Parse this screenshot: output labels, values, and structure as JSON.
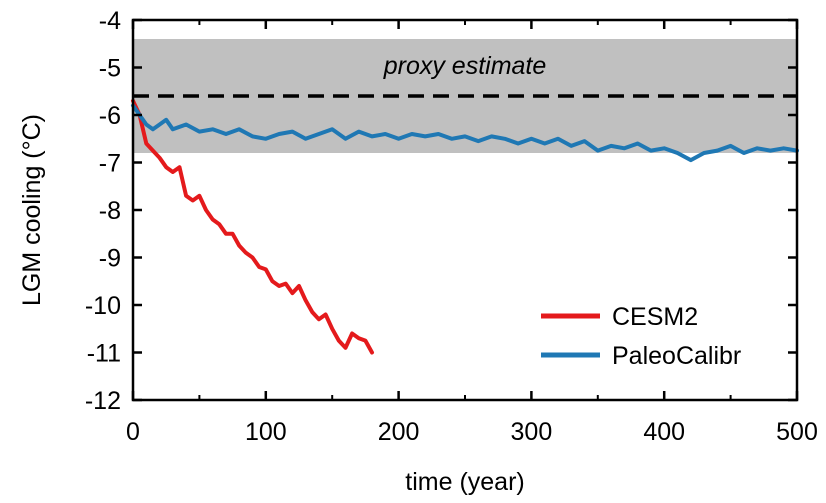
{
  "chart_data": {
    "type": "line",
    "xlabel": "time (year)",
    "ylabel": "LGM cooling (°C)",
    "xlim": [
      0,
      500
    ],
    "ylim": [
      -12,
      -4
    ],
    "x_ticks": [
      0,
      100,
      200,
      300,
      400,
      500
    ],
    "y_ticks": [
      -12,
      -11,
      -10,
      -9,
      -8,
      -7,
      -6,
      -5,
      -4
    ],
    "grid": false,
    "legend_position": "bottom-right",
    "proxy_band": {
      "label": "proxy estimate",
      "ymin": -6.8,
      "ymax": -4.4,
      "central": -5.6,
      "color": "#c0c0c0"
    },
    "series": [
      {
        "name": "CESM2",
        "color": "#e41a1c",
        "x": [
          0,
          5,
          10,
          15,
          20,
          25,
          30,
          35,
          40,
          45,
          50,
          55,
          60,
          65,
          70,
          75,
          80,
          85,
          90,
          95,
          100,
          105,
          110,
          115,
          120,
          125,
          130,
          135,
          140,
          145,
          150,
          155,
          160,
          165,
          170,
          175,
          180
        ],
        "y": [
          -5.7,
          -6.0,
          -6.6,
          -6.75,
          -6.9,
          -7.1,
          -7.2,
          -7.1,
          -7.7,
          -7.8,
          -7.7,
          -8.0,
          -8.2,
          -8.3,
          -8.5,
          -8.5,
          -8.75,
          -8.9,
          -9.0,
          -9.2,
          -9.25,
          -9.5,
          -9.6,
          -9.55,
          -9.75,
          -9.6,
          -9.9,
          -10.15,
          -10.3,
          -10.2,
          -10.5,
          -10.75,
          -10.9,
          -10.6,
          -10.7,
          -10.75,
          -11.0
        ]
      },
      {
        "name": "PaleoCalibr",
        "color": "#1f78b4",
        "x": [
          0,
          5,
          10,
          15,
          20,
          25,
          30,
          40,
          50,
          60,
          70,
          80,
          90,
          100,
          110,
          120,
          130,
          140,
          150,
          160,
          170,
          180,
          190,
          200,
          210,
          220,
          230,
          240,
          250,
          260,
          270,
          280,
          290,
          300,
          310,
          320,
          330,
          340,
          350,
          360,
          370,
          380,
          390,
          400,
          410,
          420,
          430,
          440,
          450,
          460,
          470,
          480,
          490,
          500
        ],
        "y": [
          -5.8,
          -6.0,
          -6.2,
          -6.3,
          -6.2,
          -6.1,
          -6.3,
          -6.2,
          -6.35,
          -6.3,
          -6.4,
          -6.3,
          -6.45,
          -6.5,
          -6.4,
          -6.35,
          -6.5,
          -6.4,
          -6.3,
          -6.5,
          -6.35,
          -6.45,
          -6.4,
          -6.5,
          -6.4,
          -6.45,
          -6.4,
          -6.5,
          -6.45,
          -6.55,
          -6.45,
          -6.5,
          -6.6,
          -6.5,
          -6.6,
          -6.5,
          -6.65,
          -6.55,
          -6.75,
          -6.65,
          -6.7,
          -6.6,
          -6.75,
          -6.7,
          -6.8,
          -6.95,
          -6.8,
          -6.75,
          -6.65,
          -6.8,
          -6.7,
          -6.75,
          -6.7,
          -6.75
        ]
      }
    ]
  }
}
